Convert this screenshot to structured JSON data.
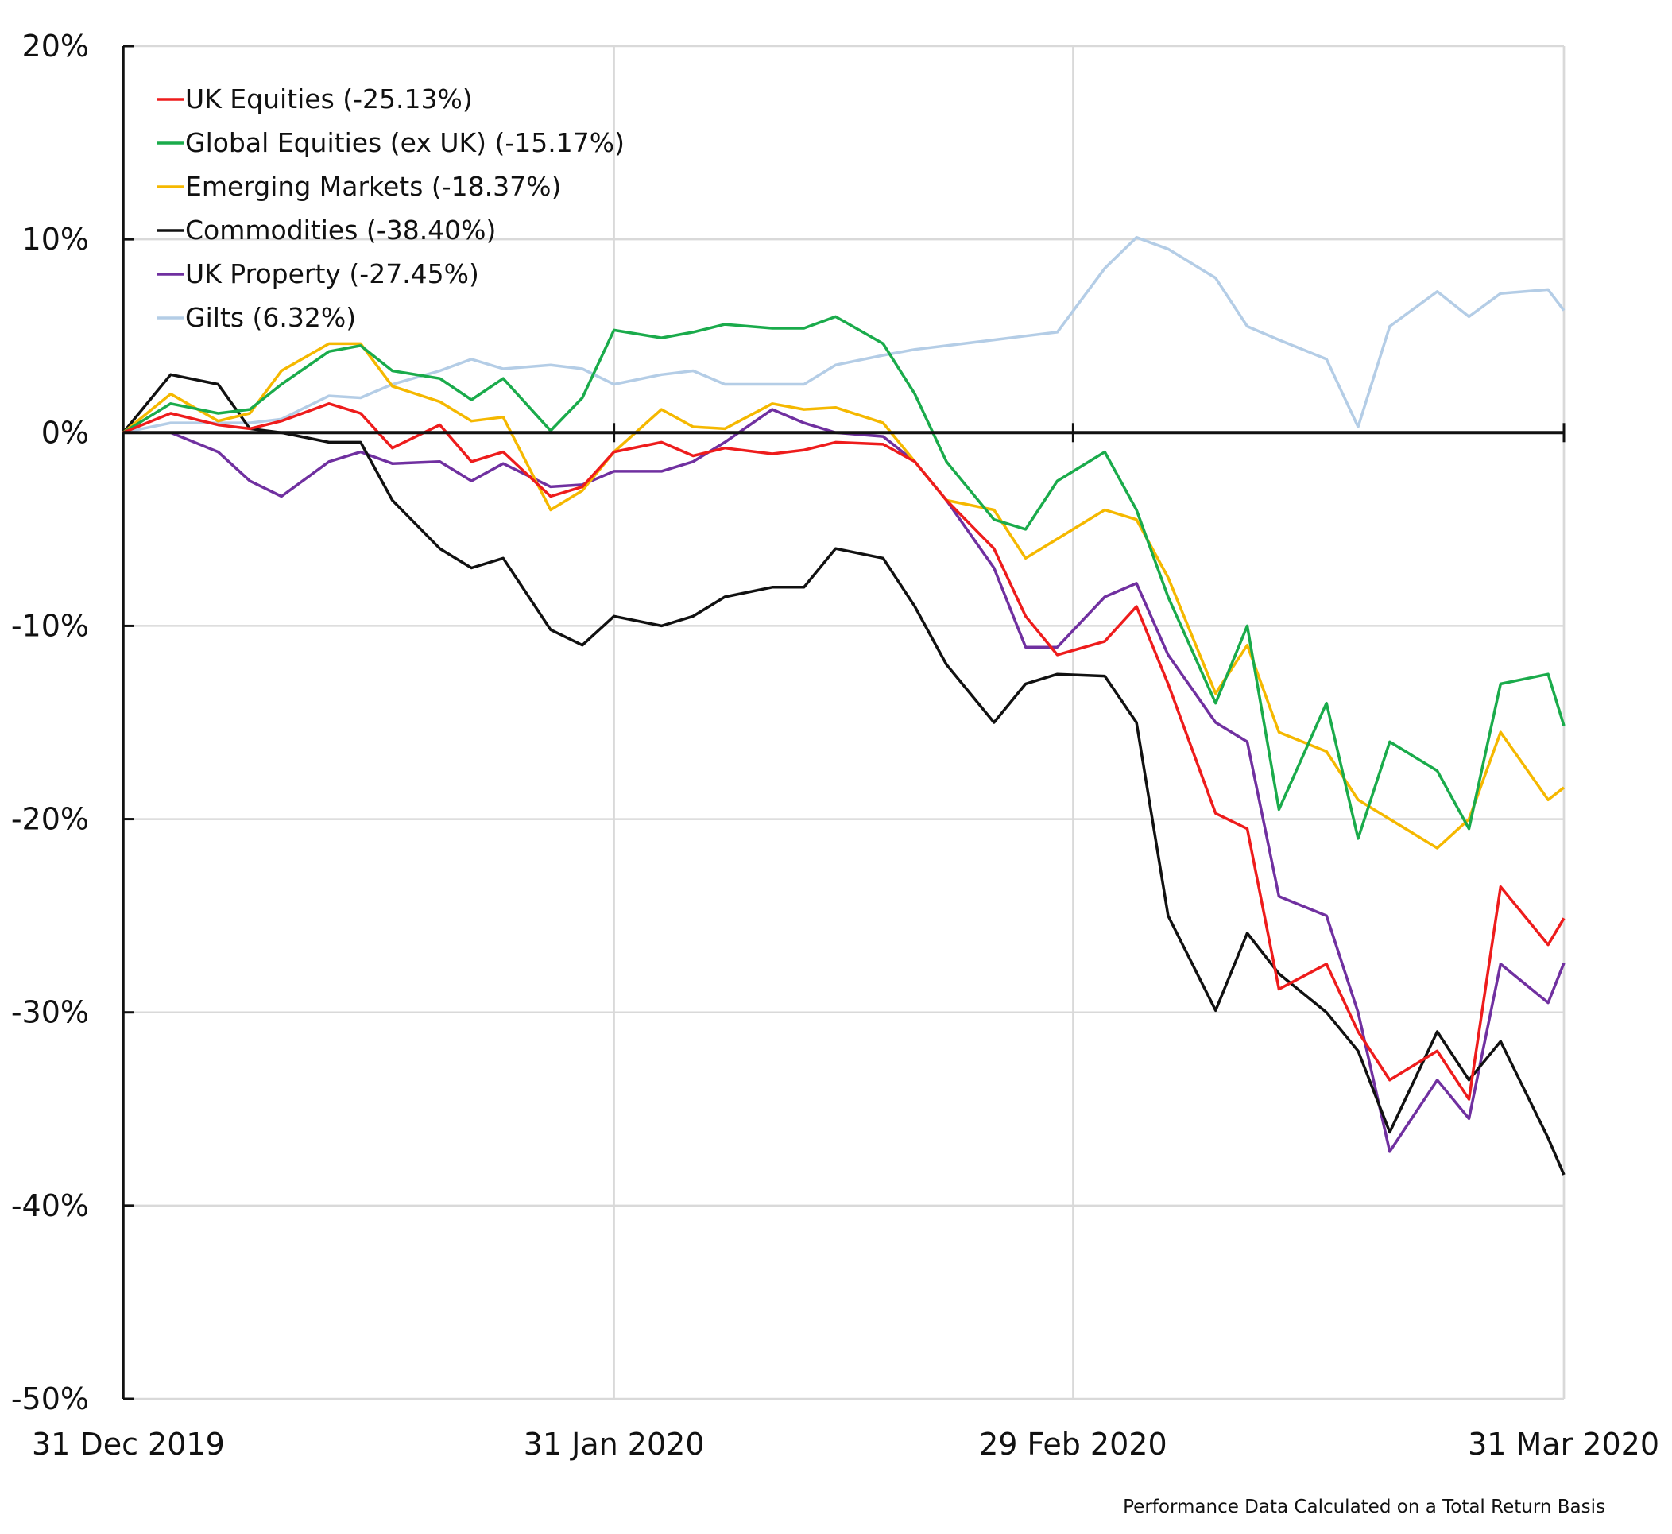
{
  "chart_data": {
    "type": "line",
    "title": "",
    "xlabel": "",
    "ylabel": "",
    "x_ticks": [
      {
        "date": "2019-12-31",
        "label": "31 Dec 2019"
      },
      {
        "date": "2020-01-31",
        "label": "31 Jan 2020"
      },
      {
        "date": "2020-02-29",
        "label": "29 Feb 2020"
      },
      {
        "date": "2020-03-31",
        "label": "31 Mar 2020"
      }
    ],
    "xlim": [
      "2019-12-31",
      "2020-03-31"
    ],
    "ylim": [
      -50,
      20
    ],
    "y_ticks": [
      20,
      10,
      0,
      -10,
      -20,
      -30,
      -40,
      -50
    ],
    "y_tick_labels": [
      "20%",
      "10%",
      "0%",
      "-10%",
      "-20%",
      "-30%",
      "-40%",
      "-50%"
    ],
    "grid": true,
    "legend_position": "top-left",
    "footnote": "Performance Data Calculated on a Total Return Basis",
    "x": [
      "2019-12-31",
      "2020-01-03",
      "2020-01-06",
      "2020-01-08",
      "2020-01-10",
      "2020-01-13",
      "2020-01-15",
      "2020-01-17",
      "2020-01-20",
      "2020-01-22",
      "2020-01-24",
      "2020-01-27",
      "2020-01-29",
      "2020-01-31",
      "2020-02-03",
      "2020-02-05",
      "2020-02-07",
      "2020-02-10",
      "2020-02-12",
      "2020-02-14",
      "2020-02-17",
      "2020-02-19",
      "2020-02-21",
      "2020-02-24",
      "2020-02-26",
      "2020-02-28",
      "2020-03-02",
      "2020-03-04",
      "2020-03-06",
      "2020-03-09",
      "2020-03-11",
      "2020-03-13",
      "2020-03-16",
      "2020-03-18",
      "2020-03-20",
      "2020-03-23",
      "2020-03-25",
      "2020-03-27",
      "2020-03-30",
      "2020-03-31"
    ],
    "series": [
      {
        "name": "UK Equities (-25.13%)",
        "color": "#ee1c1c",
        "values": [
          0,
          1.0,
          0.4,
          0.2,
          0.6,
          1.5,
          1.0,
          -0.8,
          0.4,
          -1.5,
          -1.0,
          -3.3,
          -2.8,
          -1.0,
          -0.5,
          -1.2,
          -0.8,
          -1.1,
          -0.9,
          -0.5,
          -0.6,
          -1.5,
          -3.5,
          -6.0,
          -9.5,
          -11.5,
          -10.8,
          -9.0,
          -13.0,
          -19.7,
          -20.5,
          -28.8,
          -27.5,
          -31.0,
          -33.5,
          -32.0,
          -34.5,
          -23.5,
          -26.5,
          -25.13
        ]
      },
      {
        "name": "Global Equities (ex UK) (-15.17%)",
        "color": "#1aab4b",
        "values": [
          0,
          1.5,
          1.0,
          1.2,
          2.5,
          4.2,
          4.5,
          3.2,
          2.8,
          1.7,
          2.8,
          0.1,
          1.8,
          5.3,
          4.9,
          5.2,
          5.6,
          5.4,
          5.4,
          6.0,
          4.6,
          2.0,
          -1.5,
          -4.5,
          -5.0,
          -2.5,
          -1.0,
          -4.0,
          -8.5,
          -14.0,
          -10.0,
          -19.5,
          -14.0,
          -21.0,
          -16.0,
          -17.5,
          -20.5,
          -13.0,
          -12.5,
          -15.17
        ]
      },
      {
        "name": "Emerging Markets (-18.37%)",
        "color": "#f5b800",
        "values": [
          0,
          2.0,
          0.6,
          1.0,
          3.2,
          4.6,
          4.6,
          2.4,
          1.6,
          0.6,
          0.8,
          -4.0,
          -3.0,
          -1.0,
          1.2,
          0.3,
          0.2,
          1.5,
          1.2,
          1.3,
          0.5,
          -1.5,
          -3.5,
          -4.0,
          -6.5,
          -5.5,
          -4.0,
          -4.5,
          -7.5,
          -13.5,
          -11.0,
          -15.5,
          -16.5,
          -19.0,
          -20.0,
          -21.5,
          -20.0,
          -15.5,
          -19.0,
          -18.37
        ]
      },
      {
        "name": "Commodities (-38.40%)",
        "color": "#111111",
        "values": [
          0,
          3.0,
          2.5,
          0.2,
          0.0,
          -0.5,
          -0.5,
          -3.5,
          -6.0,
          -7.0,
          -6.5,
          -10.2,
          -11.0,
          -9.5,
          -10.0,
          -9.5,
          -8.5,
          -8.0,
          -8.0,
          -6.0,
          -6.5,
          -9.0,
          -12.0,
          -15.0,
          -13.0,
          -12.5,
          -12.6,
          -15.0,
          -25.0,
          -29.9,
          -25.9,
          -28.0,
          -30.0,
          -32.0,
          -36.2,
          -31.0,
          -33.5,
          -31.5,
          -36.5,
          -38.4
        ]
      },
      {
        "name": "UK Property (-27.45%)",
        "color": "#7030a0",
        "values": [
          0,
          0,
          -1.0,
          -2.5,
          -3.3,
          -1.5,
          -1.0,
          -1.6,
          -1.5,
          -2.5,
          -1.6,
          -2.8,
          -2.7,
          -2.0,
          -2.0,
          -1.5,
          -0.5,
          1.2,
          0.5,
          0.0,
          -0.2,
          -1.5,
          -3.5,
          -7.0,
          -11.1,
          -11.1,
          -8.5,
          -7.8,
          -11.5,
          -15.0,
          -16.0,
          -24.0,
          -25.0,
          -30.0,
          -37.2,
          -33.5,
          -35.5,
          -27.5,
          -29.5,
          -27.45
        ]
      },
      {
        "name": "Gilts (6.32%)",
        "color": "#b4cde6",
        "values": [
          0,
          0.5,
          0.5,
          0.5,
          0.7,
          1.9,
          1.8,
          2.5,
          3.2,
          3.8,
          3.3,
          3.5,
          3.3,
          2.5,
          3.0,
          3.2,
          2.5,
          2.5,
          2.5,
          3.5,
          4.0,
          4.3,
          4.5,
          4.8,
          5.0,
          5.2,
          8.5,
          10.1,
          9.5,
          8.0,
          5.5,
          4.8,
          3.8,
          0.3,
          5.5,
          7.3,
          6.0,
          7.2,
          7.4,
          6.32
        ]
      }
    ]
  }
}
